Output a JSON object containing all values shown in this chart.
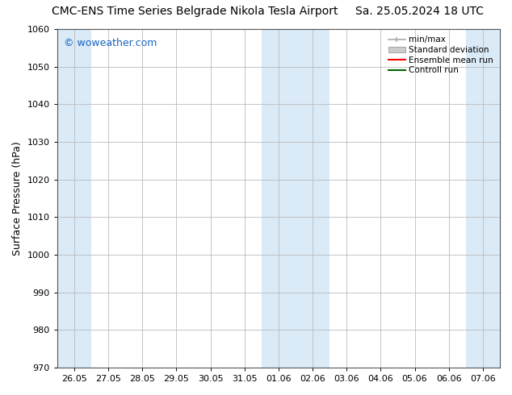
{
  "title_left": "CMC-ENS Time Series Belgrade Nikola Tesla Airport",
  "title_right": "Sa. 25.05.2024 18 UTC",
  "ylabel": "Surface Pressure (hPa)",
  "ylim": [
    970,
    1060
  ],
  "yticks": [
    970,
    980,
    990,
    1000,
    1010,
    1020,
    1030,
    1040,
    1050,
    1060
  ],
  "xtick_labels": [
    "26.05",
    "27.05",
    "28.05",
    "29.05",
    "30.05",
    "31.05",
    "01.06",
    "02.06",
    "03.06",
    "04.06",
    "05.06",
    "06.06",
    "07.06"
  ],
  "xtick_positions": [
    0,
    1,
    2,
    3,
    4,
    5,
    6,
    7,
    8,
    9,
    10,
    11,
    12
  ],
  "shaded_columns": [
    0,
    6,
    7,
    12
  ],
  "shaded_color": "#daeaf7",
  "background_color": "#ffffff",
  "plot_bg_color": "#ffffff",
  "grid_color": "#bbbbbb",
  "watermark": "© woweather.com",
  "watermark_color": "#1565c0",
  "legend_items": [
    {
      "label": "min/max",
      "color": "#aaaaaa",
      "style": "bar"
    },
    {
      "label": "Standard deviation",
      "color": "#cccccc",
      "style": "rect"
    },
    {
      "label": "Ensemble mean run",
      "color": "#ff0000",
      "style": "line"
    },
    {
      "label": "Controll run",
      "color": "#006400",
      "style": "line"
    }
  ],
  "title_fontsize": 10,
  "tick_fontsize": 8,
  "ylabel_fontsize": 9,
  "legend_fontsize": 7.5
}
